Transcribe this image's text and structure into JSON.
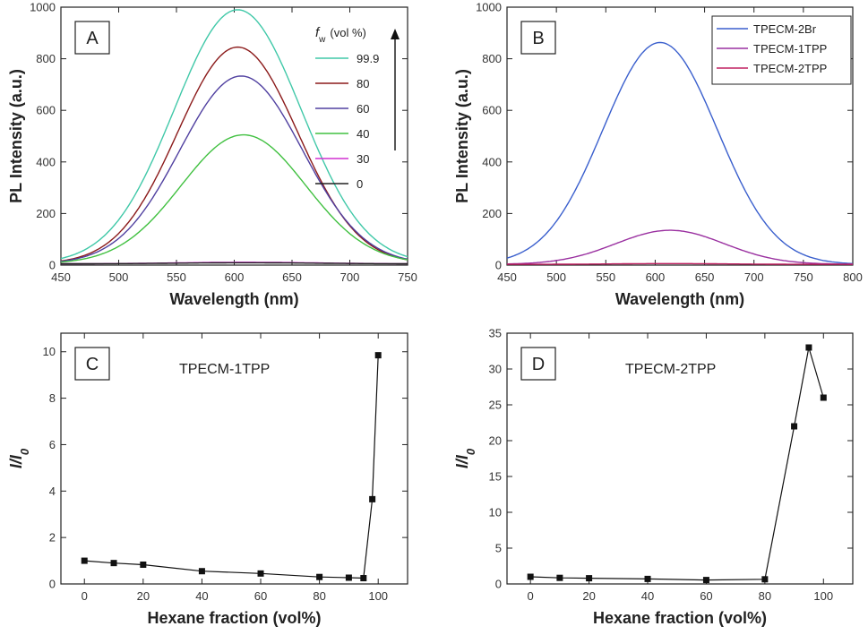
{
  "chart_data": [
    {
      "panel": "A",
      "type": "line",
      "xlabel": "Wavelength (nm)",
      "ylabel": "PL Intensity (a.u.)",
      "xlim": [
        450,
        750
      ],
      "ylim": [
        0,
        1000
      ],
      "xticks": [
        450,
        500,
        550,
        600,
        650,
        700,
        750
      ],
      "yticks": [
        0,
        200,
        400,
        600,
        800,
        1000
      ],
      "legend_title": "f_w (vol %)",
      "legend_title_main": "f",
      "legend_title_sub": "w",
      "legend_title_rest": "(vol %)",
      "legend_placement": "top-right",
      "series": [
        {
          "name": "99.9",
          "color": "#40c8a8",
          "peak": 985,
          "center": 603,
          "width": 55
        },
        {
          "name": "80",
          "color": "#8b1a1a",
          "peak": 840,
          "center": 603,
          "width": 52
        },
        {
          "name": "60",
          "color": "#5040a0",
          "peak": 728,
          "center": 606,
          "width": 53
        },
        {
          "name": "40",
          "color": "#40c040",
          "peak": 500,
          "center": 608,
          "width": 54
        },
        {
          "name": "30",
          "color": "#d030d0",
          "peak": 6,
          "center": 610,
          "width": 60
        },
        {
          "name": "0",
          "color": "#202020",
          "peak": 4,
          "center": 610,
          "width": 60
        }
      ]
    },
    {
      "panel": "B",
      "type": "line",
      "xlabel": "Wavelength (nm)",
      "ylabel": "PL Intensity (a.u.)",
      "xlim": [
        450,
        800
      ],
      "ylim": [
        0,
        1000
      ],
      "xticks": [
        450,
        500,
        550,
        600,
        650,
        700,
        750,
        800
      ],
      "yticks": [
        0,
        200,
        400,
        600,
        800,
        1000
      ],
      "legend_placement": "top-right",
      "series": [
        {
          "name": "TPECM-2Br",
          "color": "#3a5fcd",
          "peak": 860,
          "center": 605,
          "width": 58
        },
        {
          "name": "TPECM-1TPP",
          "color": "#9a30a0",
          "peak": 132,
          "center": 615,
          "width": 55
        },
        {
          "name": "TPECM-2TPP",
          "color": "#c02060",
          "peak": 3,
          "center": 615,
          "width": 55
        }
      ]
    },
    {
      "panel": "C",
      "type": "line",
      "annotation": "TPECM-1TPP",
      "xlabel": "Hexane fraction (vol%)",
      "ylabel_main": "I/I",
      "ylabel_sub": "0",
      "xlim": [
        -8,
        110
      ],
      "ylim": [
        0,
        10.8
      ],
      "xticks": [
        0,
        20,
        40,
        60,
        80,
        100
      ],
      "yticks": [
        0,
        2,
        4,
        6,
        8,
        10
      ],
      "x": [
        0,
        10,
        20,
        40,
        60,
        80,
        90,
        95,
        98,
        100
      ],
      "y": [
        1.0,
        0.9,
        0.83,
        0.55,
        0.45,
        0.3,
        0.27,
        0.25,
        3.65,
        9.85
      ]
    },
    {
      "panel": "D",
      "type": "line",
      "annotation": "TPECM-2TPP",
      "xlabel": "Hexane fraction (vol%)",
      "ylabel_main": "I/I",
      "ylabel_sub": "0",
      "xlim": [
        -8,
        110
      ],
      "ylim": [
        0,
        35
      ],
      "xticks": [
        0,
        20,
        40,
        60,
        80,
        100
      ],
      "yticks": [
        0,
        5,
        10,
        15,
        20,
        25,
        30,
        35
      ],
      "x": [
        0,
        10,
        20,
        40,
        60,
        80,
        90,
        95,
        100
      ],
      "y": [
        1.0,
        0.85,
        0.8,
        0.7,
        0.55,
        0.65,
        22.0,
        33.0,
        26.0
      ]
    }
  ]
}
